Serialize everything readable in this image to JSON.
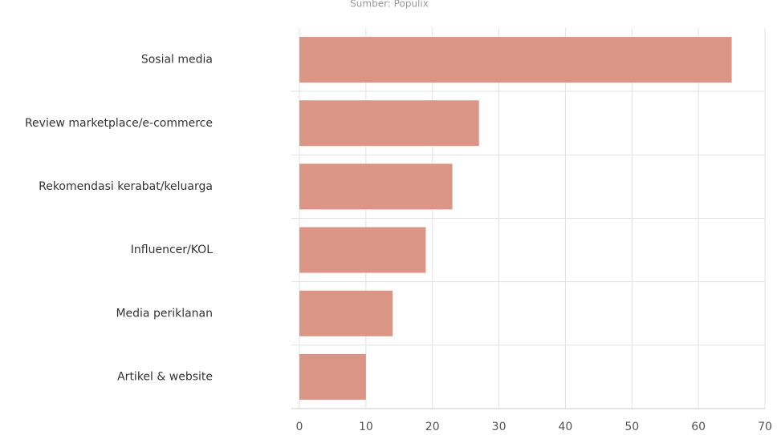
{
  "chart_data": {
    "type": "barh",
    "subtitle": "Sumber: Populix",
    "categories": [
      "Sosial media",
      "Review marketplace/e-commerce",
      "Rekomendasi kerabat/keluarga",
      "Influencer/KOL",
      "Media periklanan",
      "Artikel & website"
    ],
    "values": [
      65,
      27,
      23,
      19,
      14,
      10
    ],
    "color": "#da9584",
    "xlim": [
      0,
      70
    ],
    "xticks": [
      0,
      10,
      20,
      30,
      40,
      50,
      60,
      70
    ],
    "grid": true
  }
}
